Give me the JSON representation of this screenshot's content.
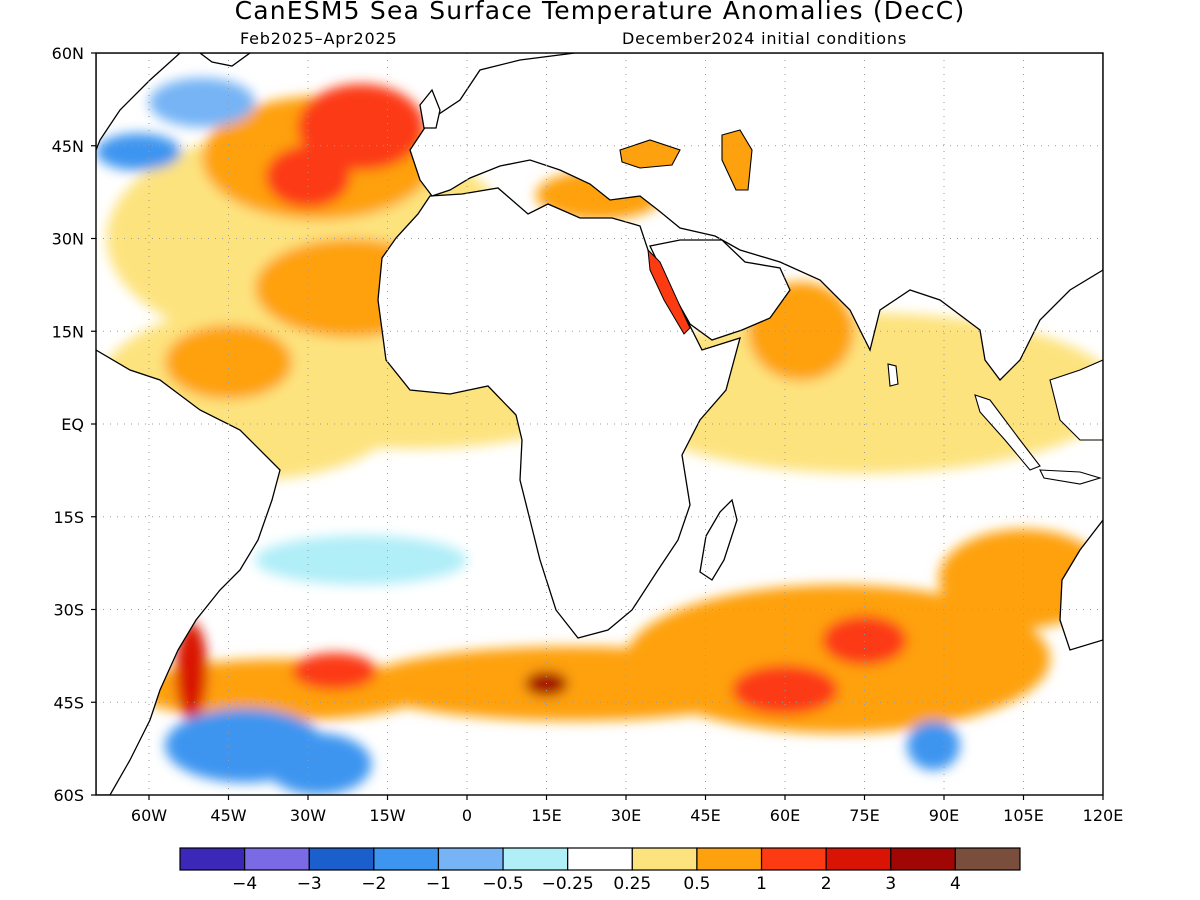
{
  "title": "CanESM5 Sea Surface Temperature Anomalies (DecC)",
  "subtitle_left": "Feb2025–Apr2025",
  "subtitle_right": "December2024 initial conditions",
  "map": {
    "lon_range": [
      -70,
      120
    ],
    "lat_range": [
      -60,
      60
    ],
    "lat_ticks": [
      {
        "value": 60,
        "label": "60N"
      },
      {
        "value": 45,
        "label": "45N"
      },
      {
        "value": 30,
        "label": "30N"
      },
      {
        "value": 15,
        "label": "15N"
      },
      {
        "value": 0,
        "label": "EQ"
      },
      {
        "value": -15,
        "label": "15S"
      },
      {
        "value": -30,
        "label": "30S"
      },
      {
        "value": -45,
        "label": "45S"
      },
      {
        "value": -60,
        "label": "60S"
      }
    ],
    "lon_ticks": [
      {
        "value": -60,
        "label": "60W"
      },
      {
        "value": -45,
        "label": "45W"
      },
      {
        "value": -30,
        "label": "30W"
      },
      {
        "value": -15,
        "label": "15W"
      },
      {
        "value": 0,
        "label": "0"
      },
      {
        "value": 15,
        "label": "15E"
      },
      {
        "value": 30,
        "label": "30E"
      },
      {
        "value": 45,
        "label": "45E"
      },
      {
        "value": 60,
        "label": "60E"
      },
      {
        "value": 75,
        "label": "75E"
      },
      {
        "value": 90,
        "label": "90E"
      },
      {
        "value": 105,
        "label": "105E"
      },
      {
        "value": 120,
        "label": "120E"
      }
    ],
    "grid": true
  },
  "colorbar": {
    "colors": [
      "#3b28b8",
      "#7b6ae6",
      "#1a5fcc",
      "#3e95f0",
      "#76b4f5",
      "#b0eef8",
      "#ffffff",
      "#fde37e",
      "#fea10e",
      "#fc3b12",
      "#d91405",
      "#a00604",
      "#7a4e3c"
    ],
    "labels": [
      "−4",
      "−3",
      "−2",
      "−1",
      "−0.5",
      "−0.25",
      "0.25",
      "0.5",
      "1",
      "2",
      "3",
      "4"
    ]
  },
  "anomaly_regions": [
    {
      "lon": -30,
      "lat": 30,
      "rx": 38,
      "ry": 18,
      "level": 7
    },
    {
      "lon": -40,
      "lat": 5,
      "rx": 30,
      "ry": 14,
      "level": 7
    },
    {
      "lon": -28,
      "lat": 43,
      "rx": 22,
      "ry": 10,
      "level": 8
    },
    {
      "lon": -22,
      "lat": 22,
      "rx": 18,
      "ry": 8,
      "level": 8
    },
    {
      "lon": -45,
      "lat": 10,
      "rx": 12,
      "ry": 6,
      "level": 8
    },
    {
      "lon": -20,
      "lat": 48,
      "rx": 12,
      "ry": 7,
      "level": 9
    },
    {
      "lon": -30,
      "lat": 40,
      "rx": 8,
      "ry": 5,
      "level": 9
    },
    {
      "lon": -50,
      "lat": 52,
      "rx": 10,
      "ry": 4,
      "level": 4
    },
    {
      "lon": -62,
      "lat": 44,
      "rx": 8,
      "ry": 3,
      "level": 3
    },
    {
      "lon": -10,
      "lat": 2,
      "rx": 30,
      "ry": 6,
      "level": 7
    },
    {
      "lon": 75,
      "lat": 5,
      "rx": 48,
      "ry": 13,
      "level": 7
    },
    {
      "lon": 63,
      "lat": 15,
      "rx": 10,
      "ry": 8,
      "level": 8
    },
    {
      "lon": 105,
      "lat": -25,
      "rx": 16,
      "ry": 8,
      "level": 8
    },
    {
      "lon": 70,
      "lat": -38,
      "rx": 40,
      "ry": 12,
      "level": 8
    },
    {
      "lon": 20,
      "lat": -42,
      "rx": 40,
      "ry": 6,
      "level": 8
    },
    {
      "lon": -35,
      "lat": -43,
      "rx": 28,
      "ry": 5,
      "level": 8
    },
    {
      "lon": 60,
      "lat": -43,
      "rx": 10,
      "ry": 4,
      "level": 9
    },
    {
      "lon": 75,
      "lat": -35,
      "rx": 8,
      "ry": 4,
      "level": 9
    },
    {
      "lon": -25,
      "lat": -40,
      "rx": 8,
      "ry": 3,
      "level": 9
    },
    {
      "lon": -52,
      "lat": -40,
      "rx": 3,
      "ry": 8,
      "level": 10
    },
    {
      "lon": 15,
      "lat": -42,
      "rx": 4,
      "ry": 2,
      "level": 11
    },
    {
      "lon": -20,
      "lat": -22,
      "rx": 20,
      "ry": 4,
      "level": 5
    },
    {
      "lon": -42,
      "lat": -52,
      "rx": 15,
      "ry": 6,
      "level": 3
    },
    {
      "lon": -28,
      "lat": -55,
      "rx": 10,
      "ry": 5,
      "level": 3
    },
    {
      "lon": 88,
      "lat": -52,
      "rx": 5,
      "ry": 4,
      "level": 3
    },
    {
      "lon": 25,
      "lat": 37,
      "rx": 12,
      "ry": 4,
      "level": 8
    }
  ]
}
